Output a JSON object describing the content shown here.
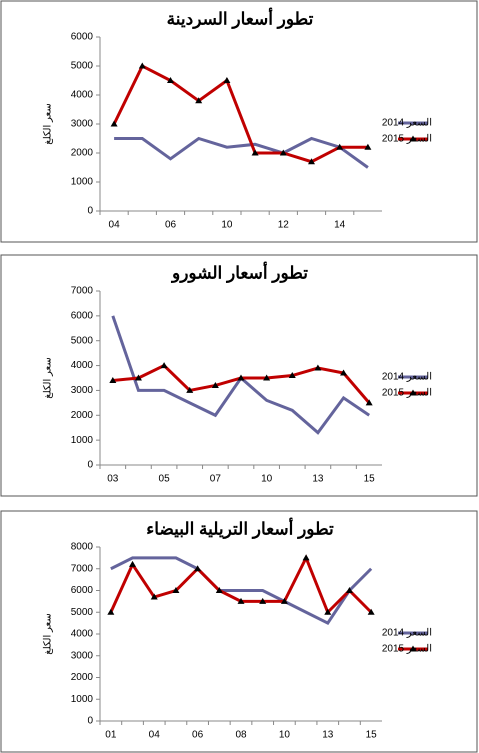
{
  "chart_data": [
    {
      "type": "line",
      "title": "تطور أسعار السردينة",
      "ylabel": "سعر الكلغ",
      "categories": [
        "04",
        null,
        "06",
        null,
        "10",
        null,
        "12",
        null,
        "14",
        null
      ],
      "series": [
        {
          "name": "السعر 2014",
          "color": "#64649c",
          "values": [
            2500,
            2500,
            1800,
            2500,
            2200,
            2300,
            2000,
            2500,
            2200,
            1500
          ]
        },
        {
          "name": "السعر 2015",
          "color": "#c00000",
          "values": [
            3000,
            5000,
            4500,
            3800,
            4500,
            2000,
            2000,
            1700,
            2200,
            2200
          ]
        }
      ],
      "ylim": [
        0,
        6000
      ],
      "yticks": [
        0,
        1000,
        2000,
        3000,
        4000,
        5000,
        6000
      ],
      "grid": false,
      "legend": "right"
    },
    {
      "type": "line",
      "title": "تطور أسعار الشورو",
      "ylabel": "سعر الكلغ",
      "categories": [
        "03",
        null,
        "05",
        null,
        "07",
        null,
        "10",
        null,
        "13",
        null,
        "15"
      ],
      "series": [
        {
          "name": "السعر 2014",
          "color": "#64649c",
          "values": [
            6000,
            3000,
            3000,
            2500,
            2000,
            3500,
            2600,
            2200,
            1300,
            2700,
            2000
          ]
        },
        {
          "name": "السعر 2015",
          "color": "#c00000",
          "values": [
            3400,
            3500,
            4000,
            3000,
            3200,
            3500,
            3500,
            3600,
            3900,
            3700,
            2500
          ]
        }
      ],
      "ylim": [
        0,
        7000
      ],
      "yticks": [
        0,
        1000,
        2000,
        3000,
        4000,
        5000,
        6000,
        7000
      ],
      "grid": false,
      "legend": "right"
    },
    {
      "type": "line",
      "title": "تطور أسعار التريلية البيضاء",
      "ylabel": "سعر الكلغ",
      "categories": [
        "01",
        null,
        "04",
        null,
        "06",
        null,
        "08",
        null,
        "10",
        null,
        "13",
        null,
        "15"
      ],
      "series": [
        {
          "name": "السعر 2014",
          "color": "#64649c",
          "values": [
            7000,
            7500,
            7500,
            7500,
            7000,
            6000,
            6000,
            6000,
            5500,
            5000,
            4500,
            6000,
            7000
          ]
        },
        {
          "name": "السعر 2015",
          "color": "#c00000",
          "values": [
            5000,
            7200,
            5700,
            6000,
            7000,
            6000,
            5500,
            5500,
            5500,
            7500,
            5000,
            6000,
            5000
          ]
        }
      ],
      "ylim": [
        0,
        8000
      ],
      "yticks": [
        0,
        1000,
        2000,
        3000,
        4000,
        5000,
        6000,
        7000,
        8000
      ],
      "grid": false,
      "legend": "right"
    }
  ]
}
